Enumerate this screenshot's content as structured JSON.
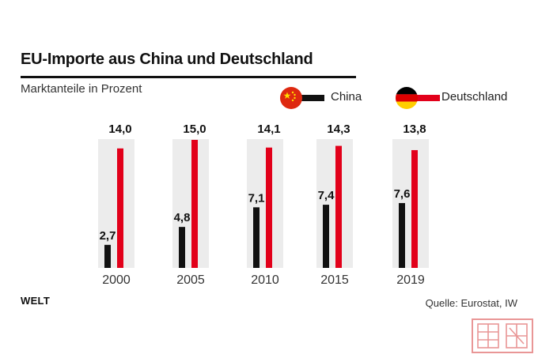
{
  "header": {
    "title": "EU-Importe aus China und Deutschland",
    "subtitle": "Marktanteile in Prozent"
  },
  "legend": [
    {
      "label": "China",
      "color": "#111111",
      "icon": "china-flag-icon"
    },
    {
      "label": "Deutschland",
      "color": "#e2001a",
      "icon": "germany-flag-icon"
    }
  ],
  "chart_data": {
    "type": "bar",
    "title": "EU-Importe aus China und Deutschland",
    "subtitle": "Marktanteile in Prozent",
    "categories": [
      "2000",
      "2005",
      "2010",
      "2015",
      "2019"
    ],
    "series": [
      {
        "name": "China",
        "values": [
          2.7,
          4.8,
          7.1,
          7.4,
          7.6
        ],
        "labels": [
          "2,7",
          "4,8",
          "7,1",
          "7,4",
          "7,6"
        ],
        "color": "#111111"
      },
      {
        "name": "Deutschland",
        "values": [
          14.0,
          15.0,
          14.1,
          14.3,
          13.8
        ],
        "labels": [
          "14,0",
          "15,0",
          "14,1",
          "14,3",
          "13,8"
        ],
        "color": "#e2001a"
      }
    ],
    "ylim": [
      0,
      15
    ],
    "grid": false,
    "legend_position": "top-right",
    "background_band_color": "#ececec"
  },
  "footer": {
    "brand": "WELT",
    "source": "Quelle: Eurostat, IW"
  },
  "colors": {
    "china": "#111111",
    "deutschland": "#e2001a",
    "band": "#ececec"
  }
}
